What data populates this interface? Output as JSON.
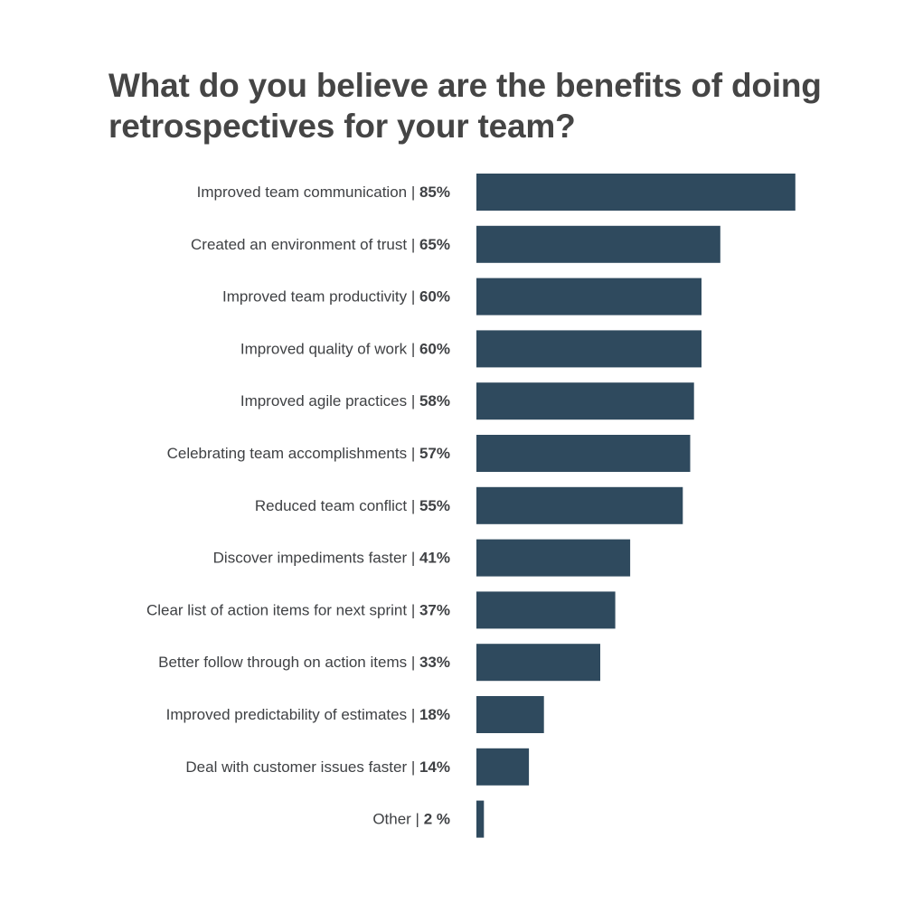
{
  "chart_data": {
    "type": "bar",
    "orientation": "horizontal",
    "title": "What do you believe are the benefits of doing retrospectives for your team?",
    "bar_color": "#2f4a5e",
    "text_color": "#3f4144",
    "xlim": [
      0,
      100
    ],
    "grid": false,
    "categories": [
      "Improved team communication",
      "Created an environment of trust",
      "Improved team productivity",
      "Improved quality of work",
      "Improved agile practices",
      "Celebrating team accomplishments",
      "Reduced team conflict",
      "Discover impediments faster",
      "Clear list of action items for  next sprint ",
      "Better follow through on action items ",
      "Improved predictability of estimates",
      "Deal with customer issues faster",
      "Other"
    ],
    "values": [
      85,
      65,
      60,
      60,
      58,
      57,
      55,
      41,
      37,
      33,
      18,
      14,
      2
    ],
    "value_labels": [
      "85%",
      "65%",
      "60%",
      "60%",
      "58%",
      "57%",
      "55%",
      "41%",
      "37%",
      "33%",
      "18%",
      "14%",
      "2 %"
    ]
  }
}
